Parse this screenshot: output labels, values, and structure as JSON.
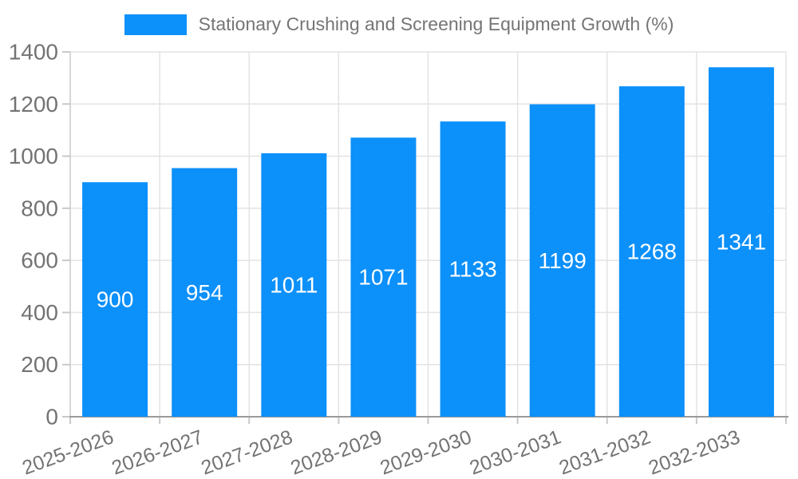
{
  "legend": {
    "label": "Stationary Crushing and Screening Equipment Growth (%)"
  },
  "colors": {
    "bar": "#0c90fa",
    "grid": "#e3e3e3",
    "axis_line": "#c9c9c9",
    "tick_mark": "#c9c9c9",
    "baseline": "#9a9a9a",
    "tick_text": "#737373",
    "value_text": "#ffffff",
    "background": "#ffffff"
  },
  "chart_data": {
    "type": "bar",
    "title": "",
    "xlabel": "",
    "ylabel": "",
    "categories": [
      "2025-2026",
      "2026-2027",
      "2027-2028",
      "2028-2029",
      "2029-2030",
      "2030-2031",
      "2031-2032",
      "2032-2033"
    ],
    "values": [
      900,
      954,
      1011,
      1071,
      1133,
      1199,
      1268,
      1341
    ],
    "series_label": "Stationary Crushing and Screening Equipment Growth (%)",
    "ylim": [
      0,
      1400
    ],
    "ytick_step": 200,
    "yticks": [
      0,
      200,
      400,
      600,
      800,
      1000,
      1200,
      1400
    ],
    "grid": true,
    "legend_position": "top",
    "value_labels": "inside-center",
    "x_label_rotation_deg": -20
  }
}
